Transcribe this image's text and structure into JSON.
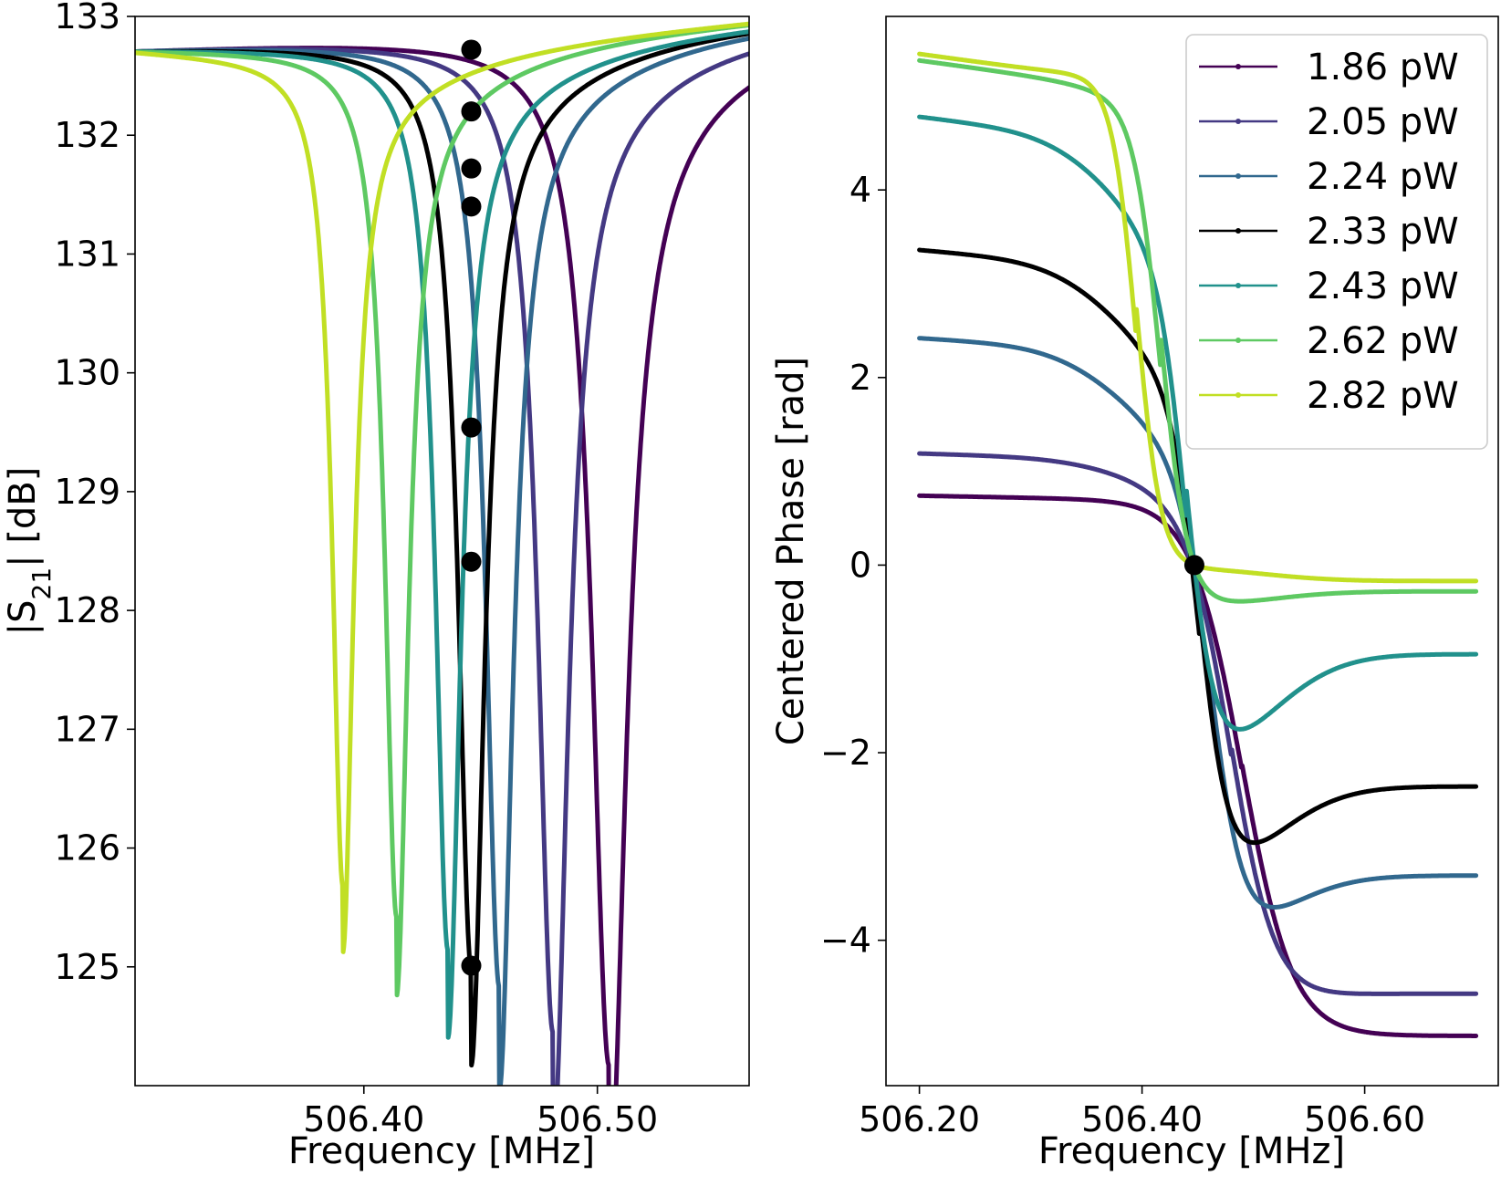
{
  "chart_data": [
    {
      "type": "line",
      "id": "magnitude",
      "xlabel": "Frequency [MHz]",
      "ylabel_parts": [
        "|S",
        "21",
        "| [dB]"
      ],
      "xlim": [
        506.302,
        506.565
      ],
      "ylim": [
        124.0,
        133.0
      ],
      "xticks": [
        506.4,
        506.5
      ],
      "xtick_labels": [
        "506.40",
        "506.50"
      ],
      "yticks": [
        125,
        126,
        127,
        128,
        129,
        130,
        131,
        132,
        133
      ],
      "ytick_labels": [
        "125",
        "126",
        "127",
        "128",
        "129",
        "130",
        "131",
        "132",
        "133"
      ],
      "markers_x": 506.446,
      "markers_y": [
        132.72,
        132.2,
        131.72,
        131.4,
        129.54,
        128.41,
        125.01
      ],
      "series": [
        {
          "name": "1.86 pW",
          "color": "#440154",
          "f0": 506.505,
          "w": 0.0088,
          "depth": 8.65,
          "base": 132.72,
          "hi": 132.82,
          "lo": 131.65,
          "rise": 0.35,
          "right": 0.12
        },
        {
          "name": "2.05 pW",
          "color": "#443983",
          "f0": 506.481,
          "w": 0.0078,
          "depth": 8.35,
          "base": 132.72,
          "hi": 132.8,
          "lo": 131.82,
          "rise": 0.32,
          "right": 0.13
        },
        {
          "name": "2.24 pW",
          "color": "#31688e",
          "f0": 506.458,
          "w": 0.007,
          "depth": 7.95,
          "base": 132.72,
          "hi": 132.78,
          "lo": 131.9,
          "rise": 0.3,
          "right": 0.14
        },
        {
          "name": "2.33 pW",
          "color": "#000000",
          "f0": 506.446,
          "w": 0.0068,
          "depth": 7.78,
          "base": 132.72,
          "hi": 132.76,
          "lo": 131.95,
          "rise": 0.28,
          "right": 0.15
        },
        {
          "name": "2.43 pW",
          "color": "#21918c",
          "f0": 506.436,
          "w": 0.0065,
          "depth": 7.6,
          "base": 132.72,
          "hi": 132.74,
          "lo": 132.0,
          "rise": 0.28,
          "right": 0.15
        },
        {
          "name": "2.62 pW",
          "color": "#5ec962",
          "f0": 506.414,
          "w": 0.006,
          "depth": 7.3,
          "base": 132.72,
          "hi": 132.72,
          "lo": 132.05,
          "rise": 0.3,
          "right": 0.16
        },
        {
          "name": "2.82 pW",
          "color": "#c1df24",
          "f0": 506.391,
          "w": 0.0055,
          "depth": 6.98,
          "base": 132.72,
          "hi": 132.66,
          "lo": 132.1,
          "rise": 0.32,
          "right": 0.17
        }
      ]
    },
    {
      "type": "line",
      "id": "phase",
      "xlabel": "Frequency [MHz]",
      "ylabel": "Centered Phase [rad]",
      "xlim": [
        506.17,
        506.72
      ],
      "ylim": [
        -5.55,
        5.85
      ],
      "xticks": [
        506.2,
        506.4,
        506.6
      ],
      "xtick_labels": [
        "506.20",
        "506.40",
        "506.60"
      ],
      "yticks": [
        -4,
        -2,
        0,
        2,
        4
      ],
      "ytick_labels": [
        "−4",
        "−2",
        "0",
        "2",
        "4"
      ],
      "marker": {
        "x": 506.447,
        "y": 0
      },
      "legend": {
        "position": "upper right"
      },
      "series": [
        {
          "name": "1.86 pW",
          "color": "#440154",
          "left": 0.74,
          "right": -5.02,
          "center": 506.49,
          "width": 0.045
        },
        {
          "name": "2.05 pW",
          "color": "#443983",
          "left": 1.19,
          "right": -4.57,
          "center": 506.48,
          "width": 0.04
        },
        {
          "name": "2.24 pW",
          "color": "#31688e",
          "left": 2.42,
          "right": -3.31,
          "center": 506.462,
          "width": 0.03
        },
        {
          "name": "2.33 pW",
          "color": "#000000",
          "left": 3.36,
          "right": -2.36,
          "center": 506.452,
          "width": 0.026
        },
        {
          "name": "2.43 pW",
          "color": "#21918c",
          "left": 4.78,
          "right": -0.95,
          "center": 506.44,
          "width": 0.025
        },
        {
          "name": "2.62 pW",
          "color": "#5ec962",
          "left": 5.38,
          "right": -0.28,
          "center": 506.417,
          "width": 0.024
        },
        {
          "name": "2.82 pW",
          "color": "#c1df24",
          "left": 5.45,
          "right": -0.17,
          "center": 506.395,
          "width": 0.022
        }
      ]
    }
  ]
}
